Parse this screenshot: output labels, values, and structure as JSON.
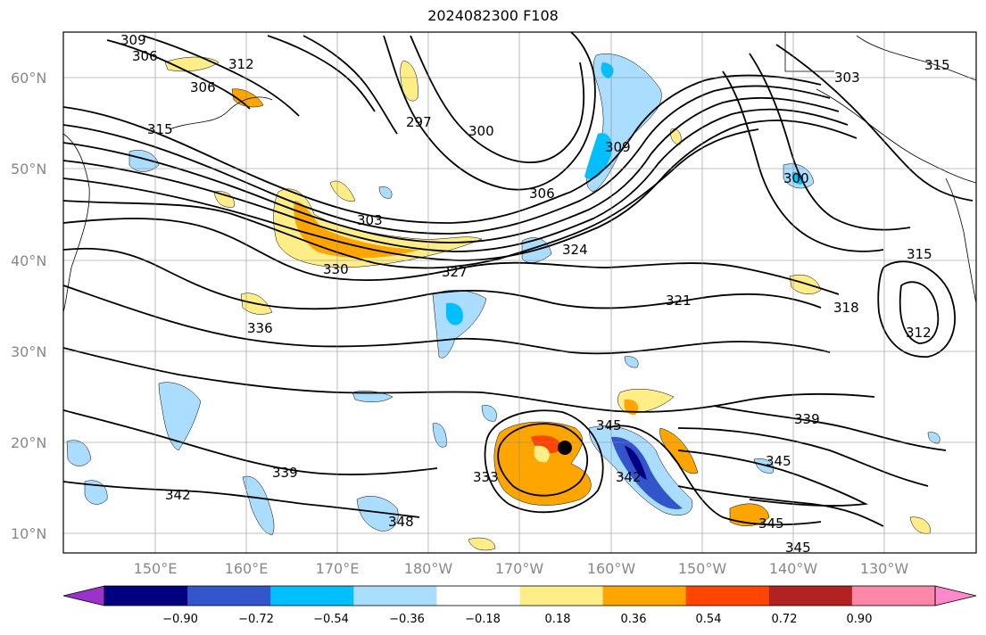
{
  "title": "2024082300 F108",
  "lat_labels": [
    "60°N",
    "50°N",
    "40°N",
    "30°N",
    "20°N",
    "10°N"
  ],
  "lon_labels": [
    "150°E",
    "160°E",
    "170°E",
    "180°W",
    "170°W",
    "160°W",
    "150°W",
    "140°W",
    "130°W"
  ],
  "contour_labels": [
    "309",
    "306",
    "312",
    "306",
    "315",
    "297",
    "300",
    "309",
    "303",
    "306",
    "315",
    "303",
    "300",
    "330",
    "327",
    "324",
    "321",
    "315",
    "318",
    "336",
    "312",
    "339",
    "342",
    "333",
    "345",
    "345",
    "345",
    "345",
    "348",
    "339",
    "342"
  ],
  "colorbar": {
    "ticks": [
      "−0.90",
      "−0.72",
      "−0.54",
      "−0.36",
      "−0.18",
      "0.18",
      "0.36",
      "0.54",
      "0.72",
      "0.90"
    ],
    "colors": [
      "#9933cc",
      "#000080",
      "#3355cc",
      "#00bfff",
      "#aaddff",
      "#ffffff",
      "#ffee88",
      "#ffa500",
      "#ff4500",
      "#b22222",
      "#ff88aa",
      "#ff88cc"
    ]
  },
  "marker": "storm-center"
}
